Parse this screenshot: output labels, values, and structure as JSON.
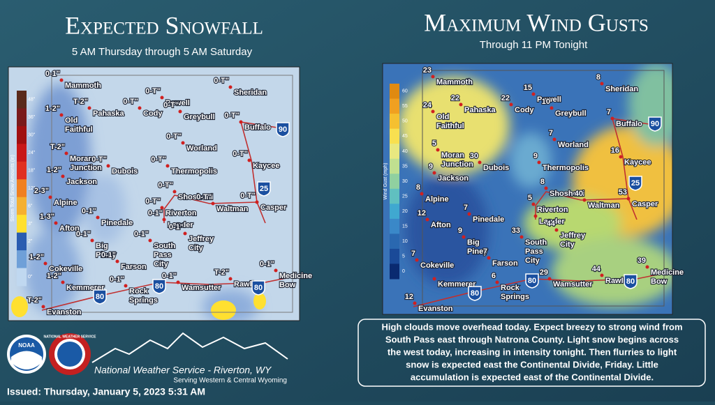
{
  "header": {
    "left_title": "Expected Snowfall",
    "left_subtitle": "5 AM Thursday through 5 AM Saturday",
    "right_title": "Maximum Wind Gusts",
    "right_subtitle": "Through 11 PM Tonight"
  },
  "snow_legend": {
    "title": "Storm Total Snow Amounts (in)",
    "ticks": [
      "48\"",
      "36\"",
      "30\"",
      "24\"",
      "18\"",
      "12\"",
      "6\"",
      "3\"",
      "2\"",
      "1\"",
      "0\""
    ]
  },
  "wind_legend": {
    "title": "Wind Gust (mph)",
    "ticks": [
      "60",
      "55",
      "50",
      "45",
      "40",
      "35",
      "30",
      "25",
      "20",
      "15",
      "10",
      "5",
      "0"
    ]
  },
  "towns": [
    {
      "name": [
        "Mammoth"
      ],
      "snow": "0-1\"",
      "gust": "23"
    },
    {
      "name": [
        "Old",
        "Faithful"
      ],
      "snow": "1-2\"",
      "gust": "24"
    },
    {
      "name": [
        "Pahaska"
      ],
      "snow": "T-2\"",
      "gust": "22"
    },
    {
      "name": [
        "Cody"
      ],
      "snow": "0-T\"",
      "gust": "22"
    },
    {
      "name": [
        "Powell"
      ],
      "snow": "0-T\"",
      "gust": "15"
    },
    {
      "name": [
        "Greybull"
      ],
      "snow": "0-T\"",
      "gust": "10"
    },
    {
      "name": [
        "Sheridan"
      ],
      "snow": "0-T\"",
      "gust": "8"
    },
    {
      "name": [
        "Buffalo"
      ],
      "snow": "0-T\"",
      "gust": "7"
    },
    {
      "name": [
        "Moran",
        "Junction"
      ],
      "snow": "T-2\"",
      "gust": "5"
    },
    {
      "name": [
        "Jackson"
      ],
      "snow": "1-2\"",
      "gust": "9"
    },
    {
      "name": [
        "Dubois"
      ],
      "snow": "0-T\"",
      "gust": "30"
    },
    {
      "name": [
        "Worland"
      ],
      "snow": "0-T\"",
      "gust": "7"
    },
    {
      "name": [
        "Thermopolis"
      ],
      "snow": "0-T\"",
      "gust": "9"
    },
    {
      "name": [
        "Kaycee"
      ],
      "snow": "0-T\"",
      "gust": "16"
    },
    {
      "name": [
        "Alpine"
      ],
      "snow": "2-3\"",
      "gust": "8"
    },
    {
      "name": [
        "Afton"
      ],
      "snow": "1-3\"",
      "gust": "12"
    },
    {
      "name": [
        "Pinedale"
      ],
      "snow": "0-1\"",
      "gust": "7"
    },
    {
      "name": [
        "Shoshoni"
      ],
      "snow": "0-T\"",
      "gust": "8"
    },
    {
      "name": [
        "Riverton"
      ],
      "snow": "0-T\"",
      "gust": "5"
    },
    {
      "name": [
        "Lander"
      ],
      "snow": "0-1\""
    },
    {
      "name": [
        "Waltman"
      ],
      "snow": "0-T\"",
      "gust": "40"
    },
    {
      "name": [
        "Casper"
      ],
      "snow": "0-T\"",
      "gust": "53"
    },
    {
      "name": [
        "Big",
        "Piney"
      ],
      "snow": "0-1\"",
      "gust": "9"
    },
    {
      "name": [
        "Jeffrey",
        "City"
      ],
      "snow": "0-1\"",
      "gust": "44"
    },
    {
      "name": [
        "South",
        "Pass",
        "City"
      ],
      "snow": "0-1\"",
      "gust": "33"
    },
    {
      "name": [
        "Farson"
      ],
      "snow": "0-1\"",
      "gust": "7"
    },
    {
      "name": [
        "Cokeville"
      ],
      "snow": "1-2\"",
      "gust": "7"
    },
    {
      "name": [
        "Kemmerer"
      ],
      "snow": "1-2\""
    },
    {
      "name": [
        "Rock",
        "Springs"
      ],
      "snow": "0-1\"",
      "gust": "6"
    },
    {
      "name": [
        "Wamsutter"
      ],
      "snow": "0-1\"",
      "gust": "29"
    },
    {
      "name": [
        "Rawlins"
      ],
      "snow": "T-2\"",
      "gust": "44"
    },
    {
      "name": [
        "Medicine",
        "Bow"
      ],
      "snow": "0-1\"",
      "gust": "39"
    },
    {
      "name": [
        "Evanston"
      ],
      "snow": "T-2\"",
      "gust": "12"
    }
  ],
  "highways": [
    "90",
    "25",
    "80"
  ],
  "description": [
    "High clouds move overhead today. Expect breezy to strong wind from",
    "South Pass east through Natrona County. Light snow begins across",
    "the west today, increasing in intensity tonight. Then flurries to light",
    "snow is expected east the Continental Divide, Friday. Little",
    "accumulation is expected east of the Continental Divide."
  ],
  "footer": {
    "noaa": "NOAA",
    "nws_seal": "NATIONAL WEATHER SERVICE",
    "office": "National Weather Service - Riverton, WY",
    "serving": "Serving Western & Central Wyoming",
    "issued": "Issued: Thursday, January 5, 2023 5:31 AM"
  }
}
